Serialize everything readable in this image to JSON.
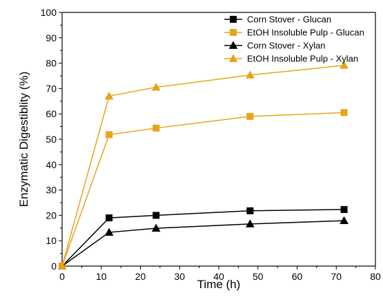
{
  "chart_data": {
    "type": "line",
    "title": "",
    "xlabel": "Time (h)",
    "ylabel": "Enzymatic Digestiblity (%)",
    "xlim": [
      0,
      80
    ],
    "ylim": [
      0,
      100
    ],
    "xticks": [
      0,
      10,
      20,
      30,
      40,
      50,
      60,
      70,
      80
    ],
    "yticks": [
      0,
      10,
      20,
      30,
      40,
      50,
      60,
      70,
      80,
      90,
      100
    ],
    "grid": false,
    "legend_position": "top-right",
    "x": [
      0,
      12,
      24,
      48,
      72
    ],
    "series": [
      {
        "name": "Corn Stover - Glucan",
        "marker": "square",
        "color": "#000000",
        "values": [
          0,
          19.0,
          20.0,
          21.8,
          22.3
        ]
      },
      {
        "name": "EtOH Insoluble Pulp - Glucan",
        "marker": "square",
        "color": "#E8A317",
        "values": [
          0,
          51.8,
          54.4,
          59.0,
          60.5
        ]
      },
      {
        "name": "Corn Stover - Xylan",
        "marker": "triangle",
        "color": "#000000",
        "values": [
          0,
          13.3,
          14.9,
          16.6,
          17.9
        ]
      },
      {
        "name": "EtOH Insoluble Pulp - Xylan",
        "marker": "triangle",
        "color": "#E8A317",
        "values": [
          0,
          67.0,
          70.5,
          75.3,
          79.1
        ]
      }
    ]
  }
}
